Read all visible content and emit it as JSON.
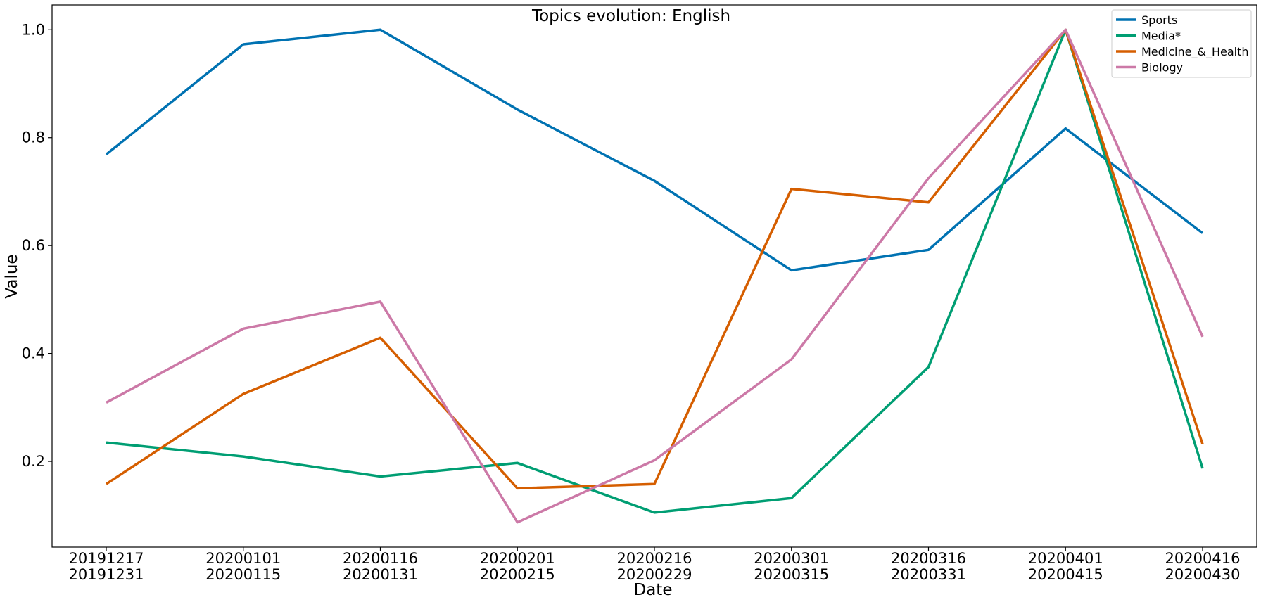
{
  "chart_data": {
    "type": "line",
    "title": "Topics evolution: English",
    "xlabel": "Date",
    "ylabel": "Value",
    "categories": [
      [
        "20191217",
        "20191231"
      ],
      [
        "20200101",
        "20200115"
      ],
      [
        "20200116",
        "20200131"
      ],
      [
        "20200201",
        "20200215"
      ],
      [
        "20200216",
        "20200229"
      ],
      [
        "20200301",
        "20200315"
      ],
      [
        "20200316",
        "20200331"
      ],
      [
        "20200401",
        "20200415"
      ],
      [
        "20200416",
        "20200430"
      ]
    ],
    "ylim": [
      0.041,
      1.046
    ],
    "yticks": [
      0.2,
      0.4,
      0.6,
      0.8,
      1.0
    ],
    "ytick_labels": [
      "0.2",
      "0.4",
      "0.6",
      "0.8",
      "1.0"
    ],
    "grid": false,
    "legend_position": "top-right",
    "series": [
      {
        "name": "Sports",
        "color": "#0072b2",
        "values": [
          0.769,
          0.973,
          1.0,
          0.852,
          0.72,
          0.554,
          0.592,
          0.817,
          0.623
        ]
      },
      {
        "name": "Media*",
        "color": "#009e73",
        "values": [
          0.235,
          0.209,
          0.172,
          0.197,
          0.105,
          0.132,
          0.375,
          1.0,
          0.187
        ]
      },
      {
        "name": "Medicine_&_Health",
        "color": "#d55e00",
        "values": [
          0.158,
          0.325,
          0.429,
          0.15,
          0.158,
          0.705,
          0.68,
          1.0,
          0.232
        ]
      },
      {
        "name": "Biology",
        "color": "#cc79a7",
        "values": [
          0.309,
          0.446,
          0.496,
          0.087,
          0.202,
          0.389,
          0.725,
          1.0,
          0.431
        ]
      }
    ]
  }
}
